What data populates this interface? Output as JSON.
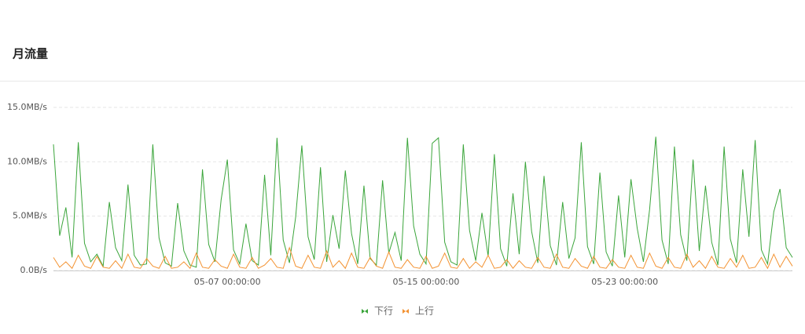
{
  "chart_data": {
    "type": "line",
    "title": "月流量",
    "categories": [
      null,
      null,
      null,
      null,
      null,
      null,
      null,
      null,
      null,
      null,
      null,
      null,
      null,
      null,
      null,
      null,
      null,
      null,
      null,
      null,
      null,
      null,
      null,
      null,
      null,
      null,
      null,
      null,
      "05-07 00:00:00",
      null,
      null,
      null,
      null,
      null,
      null,
      null,
      null,
      null,
      null,
      null,
      null,
      null,
      null,
      null,
      null,
      null,
      null,
      null,
      null,
      null,
      null,
      null,
      null,
      null,
      null,
      null,
      null,
      null,
      null,
      null,
      "05-15 00:00:00",
      null,
      null,
      null,
      null,
      null,
      null,
      null,
      null,
      null,
      null,
      null,
      null,
      null,
      null,
      null,
      null,
      null,
      null,
      null,
      null,
      null,
      null,
      null,
      null,
      null,
      null,
      null,
      null,
      null,
      null,
      null,
      "05-23 00:00:00",
      null,
      null,
      null,
      null,
      null,
      null,
      null,
      null,
      null,
      null,
      null,
      null,
      null,
      null,
      null,
      null,
      null,
      null,
      null,
      null,
      null,
      null,
      null,
      null,
      null,
      null,
      null
    ],
    "series": [
      {
        "name": "下行",
        "color": "#3ba53b",
        "values": [
          11.6,
          3.2,
          5.8,
          1.2,
          11.8,
          2.5,
          0.8,
          1.5,
          0.4,
          6.3,
          2.1,
          0.9,
          7.9,
          1.4,
          0.5,
          0.6,
          11.6,
          3.0,
          0.7,
          0.4,
          6.2,
          1.8,
          0.5,
          0.3,
          9.3,
          2.4,
          0.8,
          6.5,
          10.2,
          1.9,
          0.6,
          4.3,
          0.9,
          0.5,
          8.8,
          1.4,
          12.2,
          2.8,
          0.7,
          4.9,
          11.5,
          3.1,
          1.0,
          9.5,
          0.8,
          5.1,
          2.0,
          9.2,
          3.4,
          0.6,
          7.8,
          1.1,
          0.5,
          8.3,
          1.6,
          3.5,
          0.9,
          12.2,
          4.1,
          1.5,
          0.6,
          11.7,
          12.2,
          2.6,
          0.8,
          0.5,
          11.6,
          3.7,
          0.9,
          5.3,
          1.3,
          10.7,
          2.0,
          0.4,
          7.1,
          1.5,
          10.0,
          3.6,
          0.7,
          8.7,
          2.3,
          0.5,
          6.3,
          1.1,
          3.0,
          11.8,
          2.2,
          0.6,
          9.0,
          1.7,
          0.4,
          6.9,
          1.2,
          8.4,
          3.9,
          0.8,
          5.6,
          12.3,
          2.8,
          0.6,
          11.4,
          3.3,
          0.9,
          10.2,
          1.8,
          7.8,
          2.6,
          0.5,
          11.4,
          2.9,
          0.7,
          9.3,
          3.1,
          12.0,
          1.9,
          0.6,
          5.4,
          7.5,
          2.1,
          1.2
        ]
      },
      {
        "name": "上行",
        "color": "#f39231",
        "values": [
          1.2,
          0.3,
          0.8,
          0.2,
          1.4,
          0.4,
          0.2,
          1.3,
          0.3,
          0.2,
          0.9,
          0.2,
          1.5,
          0.3,
          0.2,
          1.1,
          0.4,
          0.2,
          1.3,
          0.2,
          0.3,
          0.8,
          0.2,
          1.6,
          0.3,
          0.2,
          1.0,
          0.4,
          0.2,
          1.5,
          0.3,
          0.2,
          1.2,
          0.2,
          0.5,
          1.1,
          0.3,
          0.2,
          2.1,
          0.4,
          0.2,
          1.4,
          0.3,
          0.2,
          1.8,
          0.3,
          0.9,
          0.2,
          1.6,
          0.3,
          0.2,
          1.2,
          0.4,
          0.2,
          1.7,
          0.3,
          0.2,
          1.0,
          0.3,
          0.2,
          1.3,
          0.2,
          0.4,
          1.6,
          0.3,
          0.2,
          1.1,
          0.2,
          0.8,
          0.3,
          1.4,
          0.2,
          0.3,
          1.0,
          0.2,
          0.9,
          0.3,
          0.2,
          1.2,
          0.3,
          0.2,
          1.5,
          0.3,
          0.2,
          1.1,
          0.4,
          0.2,
          1.3,
          0.3,
          0.2,
          1.0,
          0.3,
          0.2,
          1.4,
          0.3,
          0.2,
          1.6,
          0.4,
          0.2,
          1.2,
          0.3,
          0.2,
          1.5,
          0.3,
          0.9,
          0.2,
          1.3,
          0.3,
          0.2,
          1.1,
          0.3,
          1.4,
          0.2,
          0.3,
          1.2,
          0.2,
          1.5,
          0.3,
          1.3,
          0.4
        ]
      }
    ],
    "ylim": [
      0,
      15
    ],
    "yticks": [
      {
        "value": 0,
        "label": "0.0B/s"
      },
      {
        "value": 5,
        "label": "5.0MB/s"
      },
      {
        "value": 10,
        "label": "10.0MB/s"
      },
      {
        "value": 15,
        "label": "15.0MB/s"
      }
    ],
    "grid": true,
    "legend": "bottom"
  }
}
